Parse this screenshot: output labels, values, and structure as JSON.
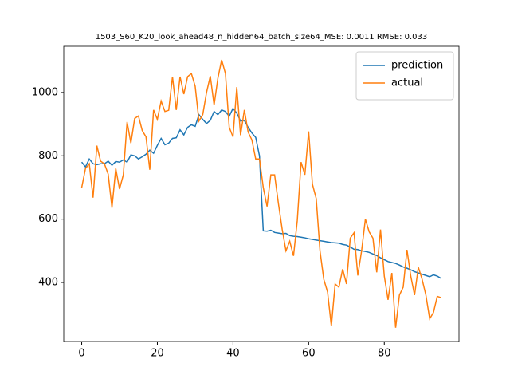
{
  "chart_data": {
    "type": "line",
    "title": "1503_S60_K20_look_ahead48_n_hidden64_batch_size64_MSE: 0.0011 RMSE: 0.033",
    "x": [
      0,
      1,
      2,
      3,
      4,
      5,
      6,
      7,
      8,
      9,
      10,
      11,
      12,
      13,
      14,
      15,
      16,
      17,
      18,
      19,
      20,
      21,
      22,
      23,
      24,
      25,
      26,
      27,
      28,
      29,
      30,
      31,
      32,
      33,
      34,
      35,
      36,
      37,
      38,
      39,
      40,
      41,
      42,
      43,
      44,
      45,
      46,
      47,
      48,
      49,
      50,
      51,
      52,
      53,
      54,
      55,
      56,
      57,
      58,
      59,
      60,
      61,
      62,
      63,
      64,
      65,
      66,
      67,
      68,
      69,
      70,
      71,
      72,
      73,
      74,
      75,
      76,
      77,
      78,
      79,
      80,
      81,
      82,
      83,
      84,
      85,
      86,
      87,
      88,
      89,
      90,
      91,
      92,
      93,
      94,
      95
    ],
    "series": [
      {
        "name": "prediction",
        "color": "#1f77b4",
        "values": [
          780,
          765,
          790,
          775,
          772,
          775,
          775,
          783,
          770,
          782,
          780,
          787,
          780,
          803,
          800,
          790,
          797,
          805,
          818,
          808,
          833,
          855,
          835,
          840,
          855,
          857,
          882,
          866,
          890,
          898,
          893,
          930,
          915,
          902,
          912,
          940,
          930,
          945,
          940,
          925,
          950,
          935,
          910,
          912,
          890,
          872,
          858,
          800,
          563,
          562,
          565,
          558,
          556,
          554,
          555,
          548,
          546,
          545,
          543,
          541,
          538,
          536,
          534,
          532,
          530,
          528,
          526,
          525,
          524,
          520,
          518,
          512,
          505,
          504,
          500,
          498,
          495,
          490,
          485,
          478,
          472,
          466,
          463,
          460,
          455,
          449,
          445,
          440,
          434,
          430,
          426,
          422,
          418,
          424,
          420,
          413
        ]
      },
      {
        "name": "actual",
        "color": "#ff7f0e",
        "values": [
          700,
          760,
          775,
          668,
          832,
          783,
          775,
          742,
          636,
          760,
          695,
          740,
          907,
          840,
          918,
          926,
          880,
          860,
          756,
          945,
          915,
          973,
          940,
          944,
          1050,
          945,
          1050,
          995,
          1050,
          1060,
          1020,
          910,
          930,
          1000,
          1052,
          960,
          1045,
          1103,
          1060,
          890,
          860,
          1017,
          865,
          945,
          875,
          850,
          790,
          790,
          700,
          640,
          740,
          740,
          650,
          568,
          500,
          530,
          484,
          596,
          780,
          740,
          877,
          710,
          665,
          500,
          410,
          370,
          262,
          395,
          385,
          442,
          395,
          540,
          557,
          422,
          500,
          600,
          560,
          540,
          432,
          567,
          420,
          345,
          430,
          257,
          360,
          385,
          503,
          420,
          360,
          448,
          410,
          360,
          285,
          305,
          356,
          352
        ]
      }
    ],
    "xlim": [
      -4.75,
      99.75
    ],
    "ylim": [
      213.5,
      1146
    ],
    "xticks": [
      0,
      20,
      40,
      60,
      80
    ],
    "yticks": [
      400,
      600,
      800,
      1000
    ],
    "legend": "upper right"
  }
}
